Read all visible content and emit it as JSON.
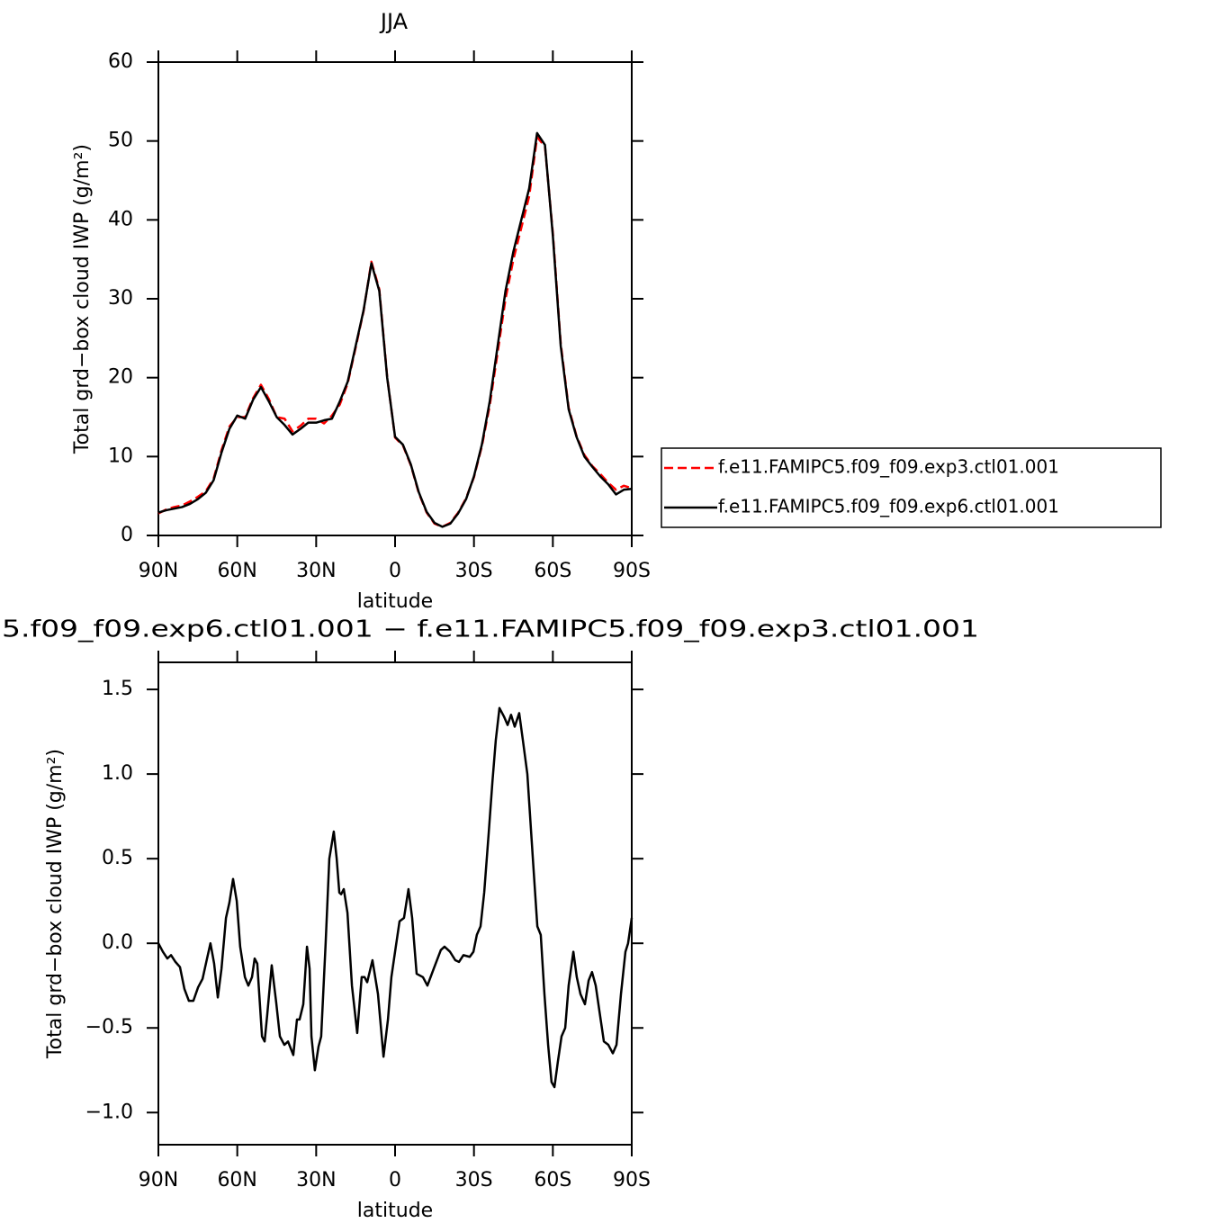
{
  "chart_data": [
    {
      "type": "line",
      "title": "JJA",
      "xlabel": "latitude",
      "ylabel": "Total grd−box cloud IWP (g/m²)",
      "x": [
        90,
        87,
        84,
        81,
        78,
        75,
        72,
        69,
        66,
        63,
        60,
        57,
        54,
        51,
        48,
        45,
        42,
        39,
        36,
        33,
        30,
        27,
        24,
        21,
        18,
        15,
        12,
        9,
        6,
        3,
        0,
        -3,
        -6,
        -9,
        -12,
        -15,
        -18,
        -21,
        -24,
        -27,
        -30,
        -33,
        -36,
        -39,
        -42,
        -45,
        -48,
        -51,
        -54,
        -57,
        -60,
        -63,
        -66,
        -69,
        -72,
        -75,
        -78,
        -81,
        -84,
        -87,
        -90
      ],
      "xlim": [
        90,
        -90
      ],
      "xticks": [
        {
          "value": 90,
          "label": "90N"
        },
        {
          "value": 60,
          "label": "60N"
        },
        {
          "value": 30,
          "label": "30N"
        },
        0,
        {
          "value": -30,
          "label": "30S"
        },
        {
          "value": -60,
          "label": "60S"
        },
        {
          "value": -90,
          "label": "90S"
        }
      ],
      "ylim": [
        0,
        60
      ],
      "yticks": [
        0,
        10,
        20,
        30,
        40,
        50,
        60
      ],
      "legend": "right",
      "series": [
        {
          "name": "f.e11.FAMIPC5.f09_f09.exp3.ctl01.001",
          "color": "#ff0000",
          "style": "dashed",
          "values": [
            2.8,
            3.3,
            3.6,
            3.8,
            4.3,
            4.9,
            5.6,
            7.2,
            10.8,
            13.8,
            15.0,
            15.0,
            17.4,
            19.1,
            17.3,
            15.0,
            14.8,
            13.2,
            13.9,
            14.8,
            14.8,
            14.2,
            15.2,
            16.6,
            19.3,
            23.8,
            28.4,
            34.7,
            31.2,
            20.1,
            12.4,
            11.4,
            8.9,
            5.4,
            2.9,
            1.5,
            1.1,
            1.6,
            2.9,
            4.7,
            7.4,
            11.3,
            16.5,
            23.2,
            30.0,
            35.0,
            39.0,
            43.0,
            50.5,
            49.3,
            38.3,
            24.3,
            16.2,
            12.6,
            10.2,
            8.8,
            7.8,
            6.7,
            5.8,
            6.3,
            6.0
          ]
        },
        {
          "name": "f.e11.FAMIPC5.f09_f09.exp6.ctl01.001",
          "color": "#000000",
          "style": "solid",
          "values": [
            2.9,
            3.2,
            3.4,
            3.6,
            4.0,
            4.6,
            5.4,
            7.0,
            10.5,
            13.5,
            15.2,
            14.8,
            17.2,
            18.8,
            17.0,
            15.0,
            14.0,
            12.8,
            13.5,
            14.3,
            14.3,
            14.6,
            14.8,
            17.0,
            19.5,
            24.0,
            28.5,
            34.5,
            31.0,
            20.0,
            12.5,
            11.5,
            9.0,
            5.5,
            3.0,
            1.6,
            1.1,
            1.5,
            2.8,
            4.6,
            7.5,
            11.5,
            17.0,
            24.0,
            31.0,
            36.0,
            40.0,
            44.0,
            51.0,
            49.5,
            38.0,
            24.0,
            16.0,
            12.5,
            10.0,
            8.7,
            7.5,
            6.5,
            5.2,
            5.8,
            5.9
          ]
        }
      ]
    },
    {
      "type": "line",
      "title": "5.f09_f09.exp6.ctl01.001 − f.e11.FAMIPC5.f09_f09.exp3.ctl01.001",
      "xlabel": "latitude",
      "ylabel": "Total grd−box cloud IWP (g/m²)",
      "x": [
        90.0,
        88.3,
        86.6,
        85.2,
        83.5,
        81.8,
        80.1,
        78.4,
        76.7,
        74.9,
        73.2,
        71.5,
        70.2,
        68.8,
        67.4,
        66.0,
        64.3,
        63.0,
        61.6,
        60.2,
        58.9,
        57.1,
        55.8,
        54.4,
        53.4,
        52.4,
        50.6,
        49.6,
        48.6,
        46.9,
        45.2,
        43.8,
        42.1,
        40.7,
        38.7,
        37.3,
        36.3,
        34.9,
        33.5,
        32.5,
        31.8,
        30.5,
        29.1,
        28.1,
        26.4,
        25.0,
        23.3,
        22.2,
        21.2,
        20.5,
        19.5,
        18.1,
        16.4,
        14.4,
        12.7,
        11.6,
        10.6,
        8.6,
        6.5,
        4.4,
        2.7,
        1.4,
        0.0,
        -1.7,
        -3.4,
        -5.1,
        -6.5,
        -8.2,
        -10.6,
        -12.3,
        -14.7,
        -17.4,
        -18.8,
        -20.9,
        -22.9,
        -24.3,
        -26.0,
        -28.4,
        -29.8,
        -31.1,
        -32.5,
        -33.9,
        -35.6,
        -37.0,
        -38.3,
        -39.7,
        -41.4,
        -42.8,
        -44.1,
        -45.5,
        -47.2,
        -48.6,
        -50.3,
        -52.4,
        -54.1,
        -55.4,
        -56.8,
        -58.2,
        -59.5,
        -60.6,
        -61.9,
        -63.3,
        -64.7,
        -66.0,
        -67.8,
        -69.1,
        -70.5,
        -72.2,
        -73.6,
        -74.9,
        -76.3,
        -77.7,
        -79.4,
        -81.1,
        -82.8,
        -84.2,
        -85.9,
        -87.6,
        -88.6,
        -90.0
      ],
      "xlim": [
        90,
        -90
      ],
      "xticks": [
        {
          "value": 90,
          "label": "90N"
        },
        {
          "value": 60,
          "label": "60N"
        },
        {
          "value": 30,
          "label": "30N"
        },
        0,
        {
          "value": -30,
          "label": "30S"
        },
        {
          "value": -60,
          "label": "60S"
        },
        {
          "value": -90,
          "label": "90S"
        }
      ],
      "ylim": [
        -1.19,
        1.66
      ],
      "yticks": [
        {
          "value": -1,
          "label": "−1.0"
        },
        {
          "value": -0.5,
          "label": "−0.5"
        },
        {
          "value": 0,
          "label": "0.0"
        },
        0.5,
        {
          "value": 1,
          "label": "1.0"
        },
        1.5
      ],
      "series": [
        {
          "color": "#000000",
          "style": "solid",
          "values": [
            0.0,
            -0.05,
            -0.09,
            -0.07,
            -0.11,
            -0.14,
            -0.27,
            -0.34,
            -0.34,
            -0.26,
            -0.21,
            -0.09,
            0.0,
            -0.12,
            -0.32,
            -0.15,
            0.15,
            0.24,
            0.38,
            0.25,
            -0.02,
            -0.2,
            -0.25,
            -0.2,
            -0.09,
            -0.12,
            -0.55,
            -0.58,
            -0.42,
            -0.13,
            -0.35,
            -0.55,
            -0.6,
            -0.58,
            -0.66,
            -0.45,
            -0.45,
            -0.36,
            -0.02,
            -0.15,
            -0.55,
            -0.75,
            -0.61,
            -0.55,
            0.0,
            0.5,
            0.66,
            0.5,
            0.3,
            0.29,
            0.32,
            0.18,
            -0.25,
            -0.53,
            -0.2,
            -0.2,
            -0.23,
            -0.1,
            -0.3,
            -0.67,
            -0.45,
            -0.2,
            -0.05,
            0.13,
            0.15,
            0.32,
            0.15,
            -0.18,
            -0.2,
            -0.25,
            -0.15,
            -0.04,
            -0.02,
            -0.05,
            -0.1,
            -0.11,
            -0.07,
            -0.08,
            -0.05,
            0.05,
            0.1,
            0.3,
            0.65,
            0.95,
            1.2,
            1.39,
            1.34,
            1.29,
            1.35,
            1.28,
            1.36,
            1.2,
            1.0,
            0.5,
            0.1,
            0.05,
            -0.3,
            -0.6,
            -0.82,
            -0.85,
            -0.7,
            -0.55,
            -0.5,
            -0.25,
            -0.05,
            -0.2,
            -0.3,
            -0.36,
            -0.22,
            -0.17,
            -0.25,
            -0.4,
            -0.58,
            -0.6,
            -0.65,
            -0.6,
            -0.3,
            -0.05,
            0.0,
            0.15
          ]
        }
      ]
    }
  ]
}
